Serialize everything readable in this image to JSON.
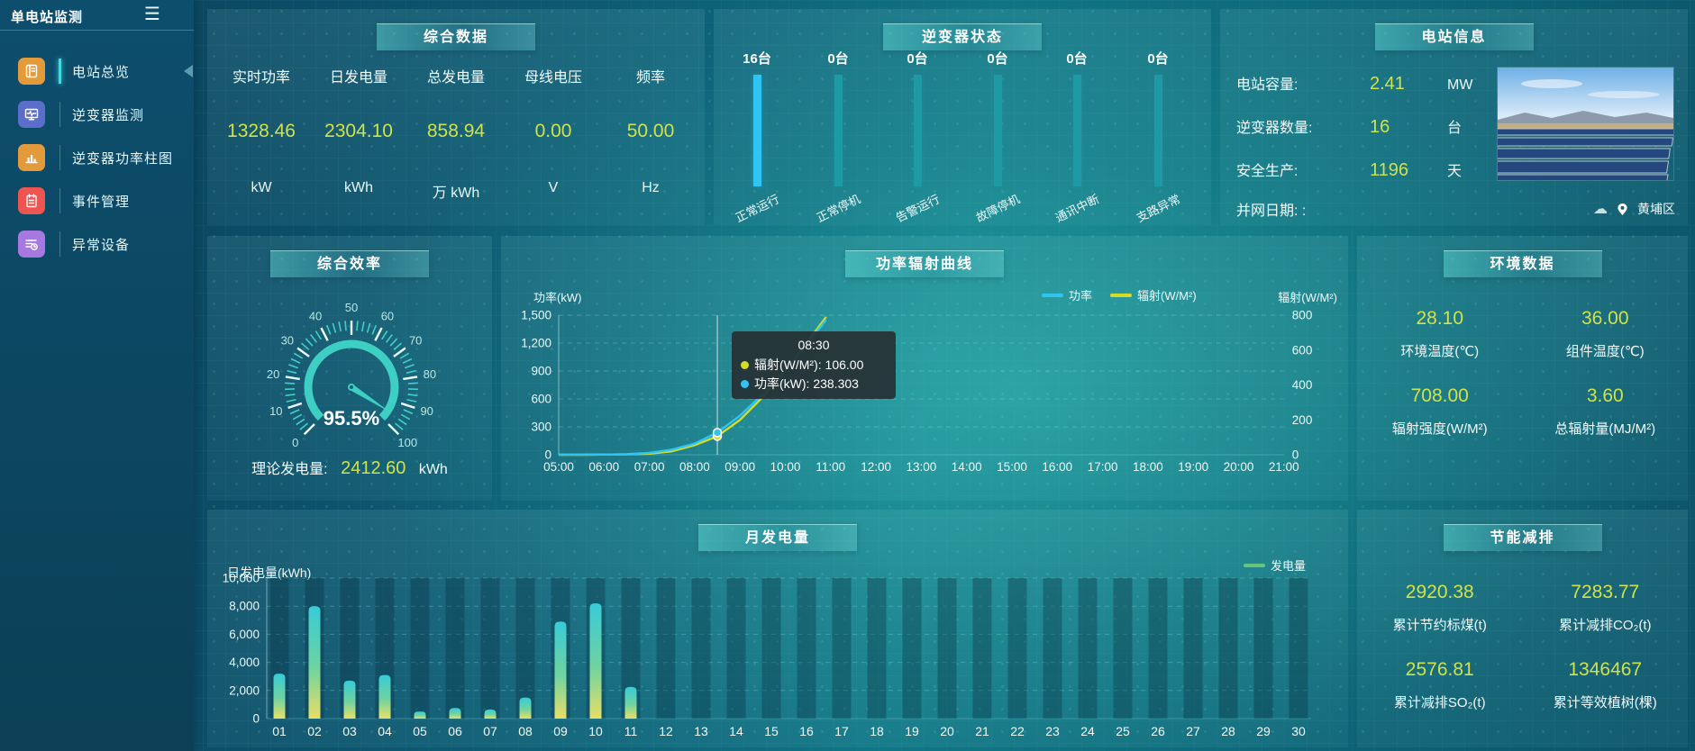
{
  "app": {
    "title": "单电站监测",
    "menu_icon": "☰",
    "district": "黄埔区"
  },
  "sidebar": {
    "items": [
      {
        "label": "电站总览",
        "icon": "overview-icon",
        "color": "#e39a3b",
        "active": true
      },
      {
        "label": "逆变器监测",
        "icon": "inverter-monitor-icon",
        "color": "#5b6ec9",
        "active": false
      },
      {
        "label": "逆变器功率柱图",
        "icon": "power-bars-icon",
        "color": "#e39a3b",
        "active": false
      },
      {
        "label": "事件管理",
        "icon": "event-icon",
        "color": "#ee5550",
        "active": false
      },
      {
        "label": "异常设备",
        "icon": "abnormal-device-icon",
        "color": "#a678e0",
        "active": false
      }
    ]
  },
  "summary": {
    "title": "综合数据",
    "metrics": [
      {
        "label": "实时功率",
        "value": "1328.46",
        "unit": "kW"
      },
      {
        "label": "日发电量",
        "value": "2304.10",
        "unit": "kWh"
      },
      {
        "label": "总发电量",
        "value": "858.94",
        "unit": "万 kWh"
      },
      {
        "label": "母线电压",
        "value": "0.00",
        "unit": "V"
      },
      {
        "label": "频率",
        "value": "50.00",
        "unit": "Hz"
      }
    ]
  },
  "inverter_status": {
    "title": "逆变器状态",
    "bars": [
      {
        "count": "16台",
        "label": "正常运行",
        "color": "#2fc4f2"
      },
      {
        "count": "0台",
        "label": "正常停机",
        "color": "#1d9aa3"
      },
      {
        "count": "0台",
        "label": "告警运行",
        "color": "#1d9aa3"
      },
      {
        "count": "0台",
        "label": "故障停机",
        "color": "#1d9aa3"
      },
      {
        "count": "0台",
        "label": "通讯中断",
        "color": "#1d9aa3"
      },
      {
        "count": "0台",
        "label": "支路异常",
        "color": "#1d9aa3"
      }
    ]
  },
  "station_info": {
    "title": "电站信息",
    "rows": [
      {
        "label": "电站容量:",
        "value": "2.41",
        "unit": "MW"
      },
      {
        "label": "逆变器数量:",
        "value": "16",
        "unit": "台"
      },
      {
        "label": "安全生产:",
        "value": "1196",
        "unit": "天"
      },
      {
        "label": "并网日期:  :",
        "value": "",
        "unit": ""
      }
    ],
    "location": "黄埔区"
  },
  "efficiency": {
    "title": "综合效率",
    "value_pct": 95.5,
    "value_label": "95.5%",
    "min": 0,
    "max": 100,
    "tick_labels": [
      "0",
      "10",
      "20",
      "30",
      "40",
      "50",
      "60",
      "70",
      "80",
      "90",
      "100"
    ],
    "theory_label": "理论发电量:",
    "theory_value": "2412.60",
    "theory_unit": "kWh"
  },
  "power_chart": {
    "title": "功率辐射曲线",
    "y1_label": "功率(kW)",
    "y2_label": "辐射(W/M²)",
    "y1_ticks": [
      "0",
      "300",
      "600",
      "900",
      "1,200",
      "1,500"
    ],
    "y2_ticks": [
      "0",
      "200",
      "400",
      "600",
      "800"
    ],
    "y1_max": 1500,
    "y2_max": 800,
    "x_ticks": [
      "05:00",
      "06:00",
      "07:00",
      "08:00",
      "09:00",
      "10:00",
      "11:00",
      "12:00",
      "13:00",
      "14:00",
      "15:00",
      "16:00",
      "17:00",
      "18:00",
      "19:00",
      "20:00",
      "21:00"
    ],
    "legend": [
      {
        "label": "功率",
        "color": "#2fc4f2"
      },
      {
        "label": "辐射(W/M²)",
        "color": "#d4dd26"
      }
    ],
    "tooltip": {
      "time": "08:30",
      "lines": [
        {
          "text": "辐射(W/M²): 106.00",
          "color": "#d4dd26"
        },
        {
          "text": "功率(kW): 238.303",
          "color": "#2fc4f2"
        }
      ]
    },
    "crosshair_hour": 8.5,
    "marker_power": 238.303,
    "marker_radiation": 106.0,
    "power_series": [
      [
        5,
        1
      ],
      [
        5.5,
        1
      ],
      [
        6,
        2
      ],
      [
        6.5,
        6
      ],
      [
        7,
        20
      ],
      [
        7.5,
        55
      ],
      [
        8,
        120
      ],
      [
        8.5,
        238.3
      ],
      [
        9,
        420
      ],
      [
        9.5,
        650
      ],
      [
        10,
        900
      ],
      [
        10.5,
        1200
      ],
      [
        10.9,
        1450
      ]
    ],
    "radiation_series": [
      [
        5,
        0
      ],
      [
        5.5,
        0
      ],
      [
        6,
        1
      ],
      [
        6.5,
        2
      ],
      [
        7,
        6
      ],
      [
        7.5,
        20
      ],
      [
        8,
        55
      ],
      [
        8.5,
        106
      ],
      [
        9,
        200
      ],
      [
        9.5,
        330
      ],
      [
        10,
        480
      ],
      [
        10.5,
        650
      ],
      [
        10.9,
        790
      ]
    ]
  },
  "environment": {
    "title": "环境数据",
    "items": [
      {
        "value": "28.10",
        "label": "环境温度(℃)"
      },
      {
        "value": "36.00",
        "label": "组件温度(℃)"
      },
      {
        "value": "708.00",
        "label": "辐射强度(W/M²)"
      },
      {
        "value": "3.60",
        "label": "总辐射量(MJ/M²)"
      }
    ]
  },
  "monthly_chart": {
    "title": "月发电量",
    "y_label": "日发电量(kWh)",
    "y_ticks": [
      "0",
      "2,000",
      "4,000",
      "6,000",
      "8,000",
      "10,000"
    ],
    "y_max": 10000,
    "legend": "发电量",
    "legend_color": "#66c57c",
    "categories": [
      "01",
      "02",
      "03",
      "04",
      "05",
      "06",
      "07",
      "08",
      "09",
      "10",
      "11",
      "12",
      "13",
      "14",
      "15",
      "16",
      "17",
      "18",
      "19",
      "20",
      "21",
      "22",
      "23",
      "24",
      "25",
      "26",
      "27",
      "28",
      "29",
      "30"
    ],
    "values": [
      3200,
      8000,
      2700,
      3100,
      500,
      750,
      650,
      1500,
      6900,
      8200,
      2250,
      0,
      0,
      0,
      0,
      0,
      0,
      0,
      0,
      0,
      0,
      0,
      0,
      0,
      0,
      0,
      0,
      0,
      0,
      0
    ]
  },
  "eco": {
    "title": "节能减排",
    "items": [
      {
        "value": "2920.38",
        "label": "累计节约标煤(t)"
      },
      {
        "value": "7283.77",
        "label": "累计减排CO₂(t)"
      },
      {
        "value": "2576.81",
        "label": "累计减排SO₂(t)"
      },
      {
        "value": "1346467",
        "label": "累计等效植树(棵)"
      }
    ]
  }
}
